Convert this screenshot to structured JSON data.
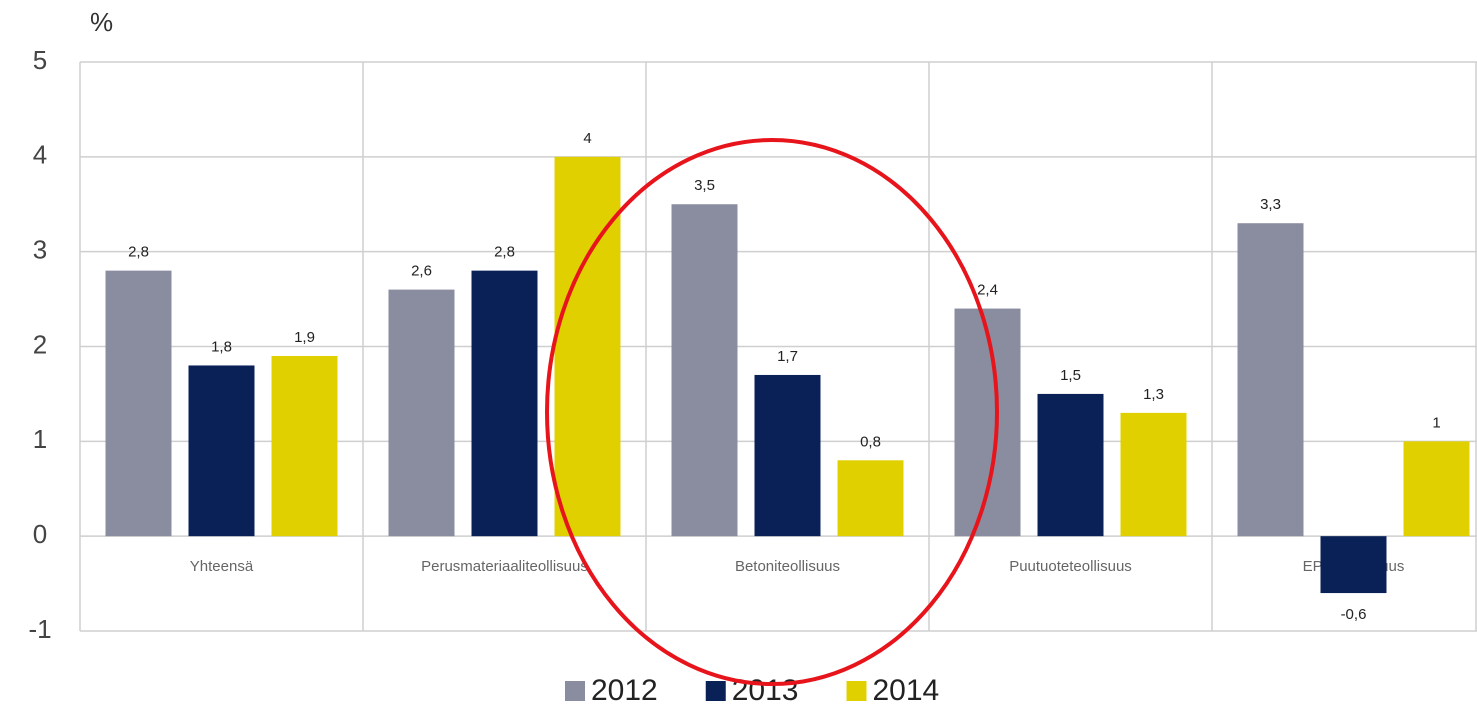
{
  "chart_data": {
    "type": "bar",
    "y_unit_label": "%",
    "categories": [
      "Yhteensä",
      "Perusmateriaaliteollisuus",
      "Betoniteollisuus",
      "Puutuoteteollisuus",
      "EPS -teollisuus"
    ],
    "series": [
      {
        "name": "2012",
        "color": "#8a8ca0",
        "values": [
          2.8,
          2.6,
          3.5,
          2.4,
          3.3
        ],
        "value_labels": [
          "2,8",
          "2,6",
          "3,5",
          "2,4",
          "3,3"
        ]
      },
      {
        "name": "2013",
        "color": "#0a2158",
        "values": [
          1.8,
          2.8,
          1.7,
          1.5,
          -0.6
        ],
        "value_labels": [
          "1,8",
          "2,8",
          "1,7",
          "1,5",
          "-0,6"
        ]
      },
      {
        "name": "2014",
        "color": "#e0d000",
        "values": [
          1.9,
          4,
          0.8,
          1.3,
          1
        ],
        "value_labels": [
          "1,9",
          "4",
          "0,8",
          "1,3",
          "1"
        ]
      }
    ],
    "ylim": [
      -1,
      5
    ],
    "yticks": [
      -1,
      0,
      1,
      2,
      3,
      4,
      5
    ],
    "grid": true,
    "legend": "bottom"
  }
}
